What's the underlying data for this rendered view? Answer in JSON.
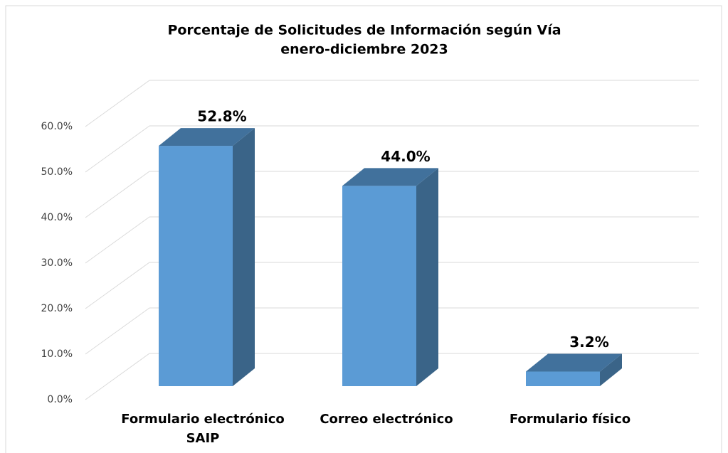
{
  "chart_data": {
    "type": "bar3d",
    "title": "Porcentaje de Solicitudes de Información según Vía",
    "subtitle": "enero-diciembre 2023",
    "categories": [
      "Formulario electrónico SAIP",
      "Correo electrónico",
      "Formulario físico"
    ],
    "values": [
      52.8,
      44.0,
      3.2
    ],
    "value_labels": [
      "52.8%",
      "44.0%",
      "3.2%"
    ],
    "color": "#5b9bd5",
    "ylim": [
      0,
      60
    ],
    "yticks": [
      {
        "value": 0,
        "label": "0.0%"
      },
      {
        "value": 10,
        "label": "10.0%"
      },
      {
        "value": 20,
        "label": "20.0%"
      },
      {
        "value": 30,
        "label": "30.0%"
      },
      {
        "value": 40,
        "label": "40.0%"
      },
      {
        "value": 50,
        "label": "50.0%"
      },
      {
        "value": 60,
        "label": "60.0%"
      }
    ],
    "grid": true
  }
}
